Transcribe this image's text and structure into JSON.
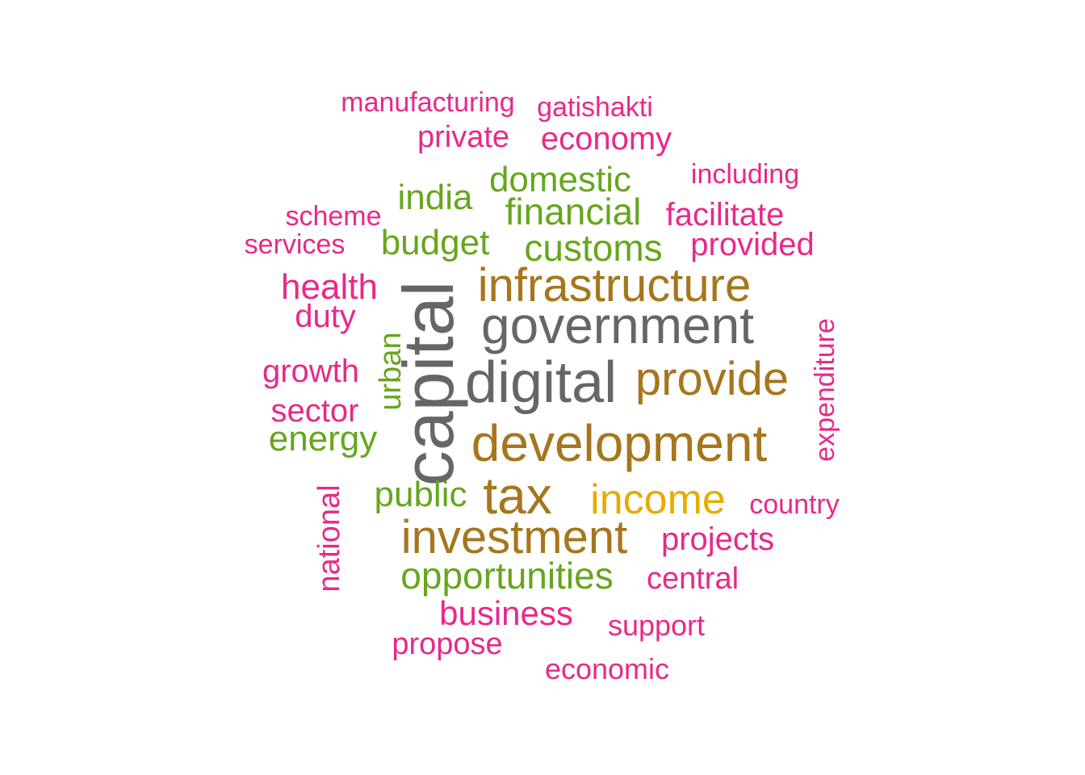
{
  "colors": {
    "pink": "#E7298A",
    "green": "#66A61E",
    "gold": "#A6761D",
    "gray": "#666666",
    "yellow": "#E6AB02"
  },
  "words": [
    {
      "text": "manufacturing",
      "color": "pink"
    },
    {
      "text": "gatishakti",
      "color": "pink"
    },
    {
      "text": "private",
      "color": "pink"
    },
    {
      "text": "economy",
      "color": "pink"
    },
    {
      "text": "including",
      "color": "pink"
    },
    {
      "text": "domestic",
      "color": "green"
    },
    {
      "text": "india",
      "color": "green"
    },
    {
      "text": "scheme",
      "color": "pink"
    },
    {
      "text": "financial",
      "color": "green"
    },
    {
      "text": "facilitate",
      "color": "pink"
    },
    {
      "text": "services",
      "color": "pink"
    },
    {
      "text": "budget",
      "color": "green"
    },
    {
      "text": "customs",
      "color": "green"
    },
    {
      "text": "provided",
      "color": "pink"
    },
    {
      "text": "health",
      "color": "pink"
    },
    {
      "text": "infrastructure",
      "color": "gold"
    },
    {
      "text": "duty",
      "color": "pink"
    },
    {
      "text": "government",
      "color": "gray"
    },
    {
      "text": "expenditure",
      "color": "pink"
    },
    {
      "text": "capital",
      "color": "gray"
    },
    {
      "text": "urban",
      "color": "green"
    },
    {
      "text": "growth",
      "color": "pink"
    },
    {
      "text": "digital",
      "color": "gray"
    },
    {
      "text": "provide",
      "color": "gold"
    },
    {
      "text": "sector",
      "color": "pink"
    },
    {
      "text": "energy",
      "color": "green"
    },
    {
      "text": "development",
      "color": "gold"
    },
    {
      "text": "national",
      "color": "pink"
    },
    {
      "text": "public",
      "color": "green"
    },
    {
      "text": "tax",
      "color": "gold"
    },
    {
      "text": "income",
      "color": "yellow"
    },
    {
      "text": "country",
      "color": "pink"
    },
    {
      "text": "investment",
      "color": "gold"
    },
    {
      "text": "projects",
      "color": "pink"
    },
    {
      "text": "opportunities",
      "color": "green"
    },
    {
      "text": "central",
      "color": "pink"
    },
    {
      "text": "business",
      "color": "pink"
    },
    {
      "text": "support",
      "color": "pink"
    },
    {
      "text": "propose",
      "color": "pink"
    },
    {
      "text": "economic",
      "color": "pink"
    }
  ]
}
